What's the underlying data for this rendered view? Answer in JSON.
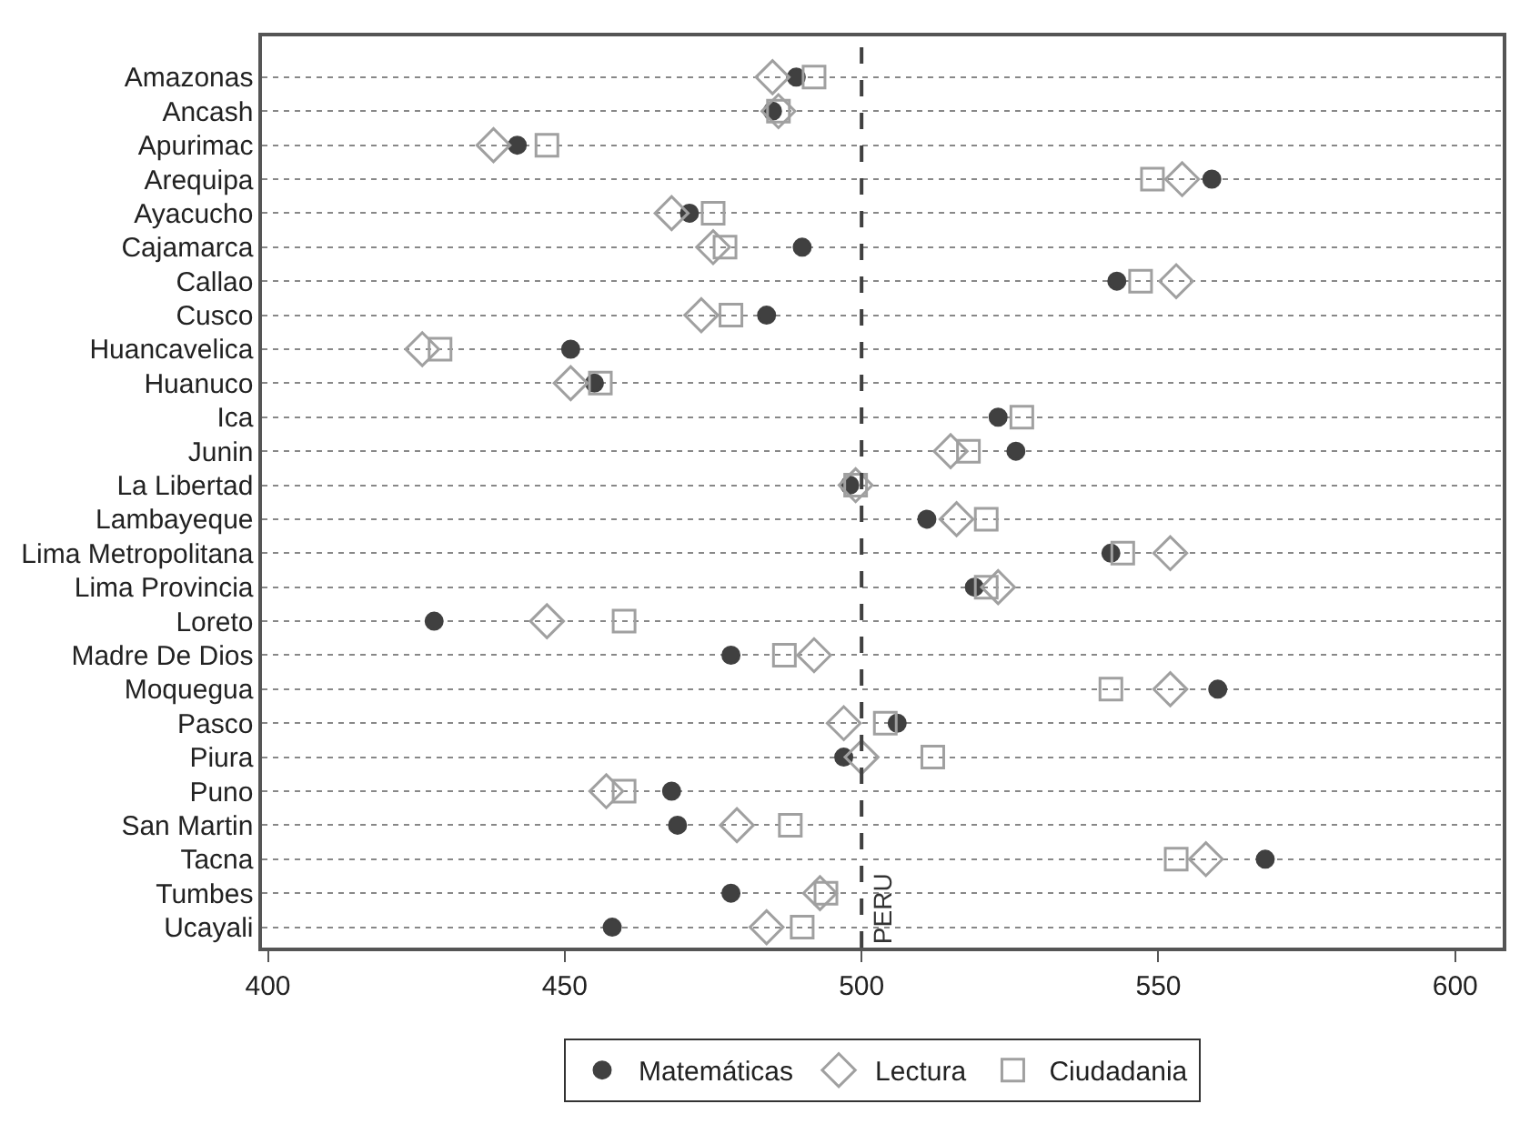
{
  "chart_data": {
    "type": "scatter",
    "categories": [
      "Amazonas",
      "Ancash",
      "Apurimac",
      "Arequipa",
      "Ayacucho",
      "Cajamarca",
      "Callao",
      "Cusco",
      "Huancavelica",
      "Huanuco",
      "Ica",
      "Junin",
      "La Libertad",
      "Lambayeque",
      "Lima Metropolitana",
      "Lima Provincia",
      "Loreto",
      "Madre De Dios",
      "Moquegua",
      "Pasco",
      "Piura",
      "Puno",
      "San Martin",
      "Tacna",
      "Tumbes",
      "Ucayali"
    ],
    "series": [
      {
        "name": "Matemáticas",
        "color": "#404040",
        "marker": "circle",
        "values": [
          489,
          485,
          442,
          559,
          471,
          490,
          543,
          484,
          451,
          455,
          523,
          526,
          498,
          511,
          542,
          519,
          428,
          478,
          560,
          506,
          497,
          468,
          469,
          568,
          478,
          458
        ]
      },
      {
        "name": "Lectura",
        "color": "#a0a0a0",
        "marker": "diamond",
        "values": [
          485,
          486,
          438,
          554,
          468,
          475,
          553,
          473,
          426,
          451,
          null,
          515,
          499,
          516,
          552,
          523,
          447,
          492,
          552,
          497,
          500,
          457,
          479,
          558,
          493,
          484
        ]
      },
      {
        "name": "Ciudadania",
        "color": "#a0a0a0",
        "marker": "square",
        "values": [
          492,
          486,
          447,
          549,
          475,
          477,
          547,
          478,
          429,
          456,
          527,
          518,
          499,
          521,
          544,
          521,
          460,
          487,
          542,
          504,
          512,
          460,
          488,
          553,
          494,
          490
        ]
      }
    ],
    "orientation": "horizontal",
    "xlim": [
      399,
      608
    ],
    "xticks": [
      400,
      450,
      500,
      550,
      600
    ],
    "grid": "y",
    "legend": "bottom",
    "ref_lines": [
      {
        "axis": "x",
        "value": 500,
        "label": "PERU",
        "color": "#404040",
        "line_style": "dashed"
      }
    ]
  }
}
